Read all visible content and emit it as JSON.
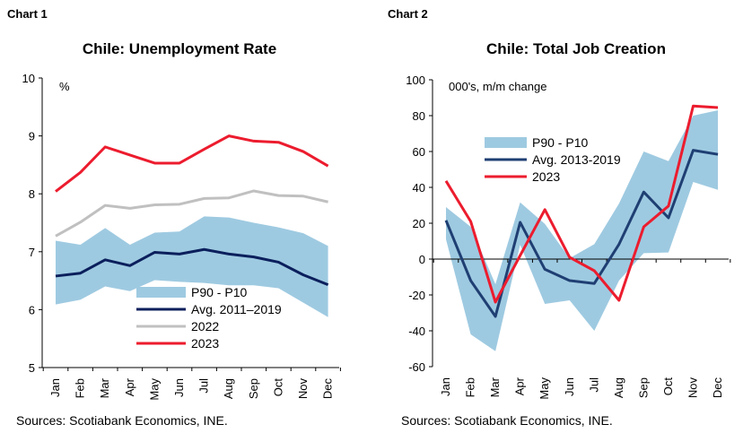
{
  "chart_data": [
    {
      "type": "line",
      "label": "Chart 1",
      "title": "Chile: Unemployment Rate",
      "unit": "%",
      "ylim": [
        5,
        10
      ],
      "yticks": [
        5,
        6,
        7,
        8,
        9,
        10
      ],
      "categories": [
        "Jan",
        "Feb",
        "Mar",
        "Apr",
        "May",
        "Jun",
        "Jul",
        "Aug",
        "Sep",
        "Oct",
        "Nov",
        "Dec"
      ],
      "band": {
        "name": "P90 - P10",
        "color": "#9ecae1",
        "upper": [
          7.19,
          7.12,
          7.41,
          7.12,
          7.33,
          7.35,
          7.61,
          7.59,
          7.5,
          7.42,
          7.32,
          7.1
        ],
        "lower": [
          6.09,
          6.17,
          6.4,
          6.32,
          6.51,
          6.48,
          6.46,
          6.42,
          6.42,
          6.37,
          6.12,
          5.87
        ]
      },
      "series": [
        {
          "name": "Avg. 2011–2019",
          "color": "#0b1f5c",
          "values": [
            6.58,
            6.63,
            6.86,
            6.76,
            6.99,
            6.96,
            7.04,
            6.96,
            6.91,
            6.82,
            6.6,
            6.43
          ]
        },
        {
          "name": "2022",
          "color": "#c0c0c0",
          "values": [
            7.27,
            7.51,
            7.8,
            7.75,
            7.81,
            7.82,
            7.92,
            7.93,
            8.05,
            7.97,
            7.96,
            7.86
          ]
        },
        {
          "name": "2023",
          "color": "#ec1c2e",
          "values": [
            8.04,
            8.37,
            8.81,
            8.67,
            8.53,
            8.53,
            8.77,
            9.0,
            8.91,
            8.89,
            8.73,
            8.48
          ]
        }
      ],
      "legend_placement": "bottom-center",
      "source": "Sources: Scotiabank Economics, INE."
    },
    {
      "type": "line",
      "label": "Chart 2",
      "title": "Chile: Total Job Creation",
      "unit": "000's, m/m change",
      "ylim": [
        -60,
        100
      ],
      "yticks": [
        -60,
        -40,
        -20,
        0,
        20,
        40,
        60,
        80,
        100
      ],
      "categories": [
        "Jan",
        "Feb",
        "Mar",
        "Apr",
        "May",
        "Jun",
        "Jul",
        "Aug",
        "Sep",
        "Oct",
        "Nov",
        "Dec"
      ],
      "band": {
        "name": "P90 - P10",
        "color": "#9ecae1",
        "upper": [
          29,
          18,
          -14,
          31.6,
          19.6,
          0.5,
          8.3,
          31,
          60,
          54.6,
          80,
          83
        ],
        "lower": [
          11,
          -42,
          -51.4,
          8,
          -25,
          -23,
          -40,
          -12,
          3.3,
          3.7,
          43,
          38.6
        ]
      },
      "series": [
        {
          "name": "Avg. 2013-2019",
          "color": "#1f3f73",
          "values": [
            21.6,
            -12,
            -32,
            20.5,
            -5.7,
            -12,
            -13.6,
            8.3,
            37.4,
            23,
            60.7,
            58.4
          ]
        },
        {
          "name": "2023",
          "color": "#ec1c2e",
          "values": [
            43.6,
            21,
            -24,
            2,
            27.6,
            1,
            -6.5,
            -23,
            18,
            29.6,
            85.4,
            84.5
          ]
        }
      ],
      "legend_placement": "top-center",
      "source": "Sources: Scotiabank Economics, INE."
    }
  ]
}
